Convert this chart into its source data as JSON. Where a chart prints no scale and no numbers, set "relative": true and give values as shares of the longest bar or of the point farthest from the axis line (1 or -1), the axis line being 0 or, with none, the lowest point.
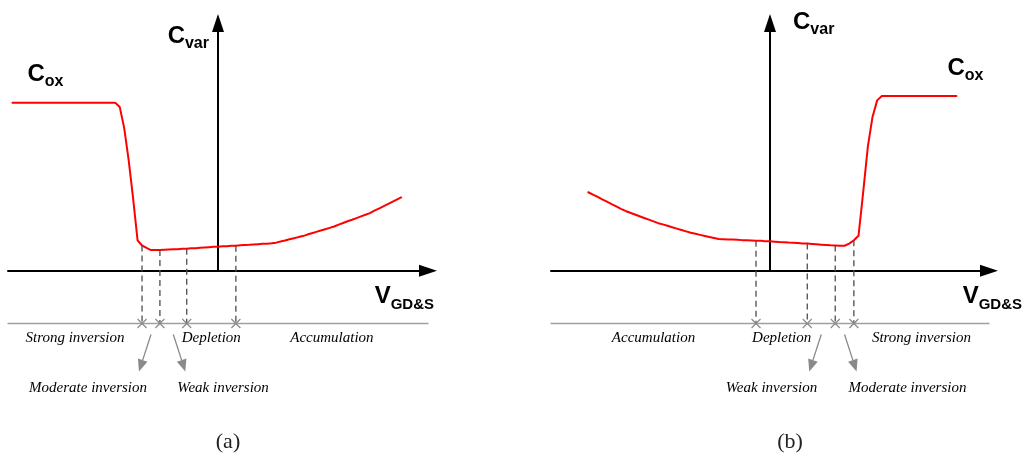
{
  "chart_data": [
    {
      "type": "line",
      "title": "(a)",
      "xlabel": "V$_{GD&S}$",
      "ylabel": "C$_{var}$",
      "relative": true,
      "marker": "none",
      "color": "#ff0000",
      "categories": [
        null,
        null,
        null,
        null,
        null,
        null,
        null,
        null,
        null,
        null,
        null,
        null,
        null,
        null,
        null,
        null,
        null,
        null,
        null,
        null,
        null,
        null,
        null,
        null,
        null,
        null,
        null,
        null,
        null,
        null,
        null,
        null,
        null,
        null,
        null,
        null,
        null,
        null,
        null,
        null,
        null,
        null,
        null,
        null,
        null,
        null,
        null,
        null,
        null,
        null,
        null,
        null,
        null,
        null,
        null,
        null,
        null,
        null,
        null,
        null,
        null,
        null,
        null,
        null,
        null,
        null,
        null,
        null,
        null,
        null,
        null,
        null,
        null,
        null,
        null,
        null,
        null,
        null,
        null,
        null,
        null,
        null,
        null,
        null,
        null,
        null,
        null,
        null,
        null,
        null,
        null,
        null,
        null,
        null,
        null
      ],
      "values": [
        null,
        1,
        1,
        1,
        1,
        1,
        1,
        1,
        1,
        1,
        1,
        1,
        1,
        1,
        1,
        1,
        1,
        1,
        1,
        1,
        1,
        1,
        1,
        1,
        1,
        0.975,
        0.85,
        0.66,
        0.43,
        0.18,
        0.15,
        0.136,
        0.123,
        0.123,
        0.123,
        0.125,
        0.126,
        0.127,
        0.128,
        0.13,
        0.131,
        0.133,
        0.134,
        0.136,
        0.138,
        0.14,
        0.142,
        0.143,
        0.145,
        0.146,
        0.148,
        0.149,
        0.151,
        0.153,
        0.154,
        0.156,
        0.158,
        0.16,
        0.161,
        0.163,
        0.167,
        0.174,
        0.18,
        0.187,
        0.193,
        0.2,
        0.206,
        0.215,
        0.223,
        0.231,
        0.239,
        0.247,
        0.255,
        0.263,
        0.274,
        0.284,
        0.294,
        0.303,
        0.313,
        0.323,
        0.333,
        0.343,
        0.357,
        0.37,
        0.383,
        0.396,
        0.41,
        0.423,
        0.436,
        null,
        null,
        null,
        null,
        null,
        null
      ],
      "annotations": [
        "C$_{ox}$",
        "Strong inversion",
        "Moderate inversion",
        "Weak inversion",
        "Depletion",
        "Accumulation"
      ]
    },
    {
      "type": "line",
      "title": "(b)",
      "xlabel": "V$_{GD&S}$",
      "ylabel": "C$_{var}$",
      "relative": true,
      "marker": "none",
      "color": "#ff0000",
      "categories": [
        null,
        null,
        null,
        null,
        null,
        null,
        null,
        null,
        null,
        null,
        null,
        null,
        null,
        null,
        null,
        null,
        null,
        null,
        null,
        null,
        null,
        null,
        null,
        null,
        null,
        null,
        null,
        null,
        null,
        null,
        null,
        null,
        null,
        null,
        null,
        null,
        null,
        null,
        null,
        null,
        null,
        null,
        null,
        null,
        null,
        null,
        null,
        null,
        null,
        null,
        null,
        null,
        null,
        null,
        null,
        null,
        null,
        null,
        null,
        null,
        null,
        null,
        null,
        null,
        null,
        null,
        null,
        null,
        null,
        null,
        null,
        null,
        null,
        null,
        null,
        null,
        null,
        null,
        null,
        null,
        null,
        null,
        null,
        null,
        null,
        null,
        null,
        null,
        null,
        null,
        null,
        null,
        null,
        null,
        null
      ],
      "values": [
        null,
        null,
        null,
        null,
        null,
        null,
        null,
        null,
        0.449,
        0.436,
        0.422,
        0.408,
        0.395,
        0.381,
        0.368,
        0.354,
        0.342,
        0.332,
        0.322,
        0.312,
        0.302,
        0.292,
        0.282,
        0.272,
        0.265,
        0.257,
        0.249,
        0.241,
        0.233,
        0.225,
        0.217,
        0.211,
        0.205,
        0.199,
        0.193,
        0.187,
        0.181,
        0.18,
        0.179,
        0.178,
        0.177,
        0.175,
        0.174,
        0.173,
        0.172,
        0.171,
        0.169,
        0.168,
        0.166,
        0.164,
        0.163,
        0.161,
        0.16,
        0.158,
        0.156,
        0.155,
        0.153,
        0.151,
        0.149,
        0.147,
        0.145,
        0.144,
        0.143,
        0.143,
        0.155,
        0.174,
        0.2,
        0.45,
        0.71,
        0.88,
        0.975,
        1,
        1,
        1,
        1,
        1,
        1,
        1,
        1,
        1,
        1,
        1,
        1,
        1,
        1,
        1,
        1,
        1,
        null,
        null,
        null,
        null,
        null,
        null,
        null
      ],
      "annotations": [
        "C$_{ox}$",
        "Accumulation",
        "Depletion",
        "Weak inversion",
        "Moderate inversion",
        "Strong inversion"
      ]
    }
  ]
}
